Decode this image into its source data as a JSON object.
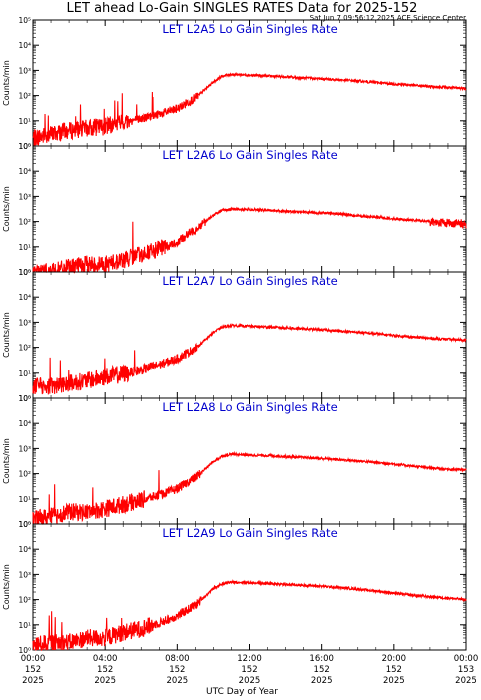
{
  "header": {
    "title": "LET ahead Lo-Gain SINGLES RATES Data for 2025-152",
    "timestamp": "Sat Jun  7 09:56:12 2025 ACE Science Center"
  },
  "xaxis": {
    "label": "UTC Day of Year",
    "ticks": [
      {
        "hour": 0,
        "time": "00:00",
        "doy": "152",
        "year": "2025"
      },
      {
        "hour": 4,
        "time": "04:00",
        "doy": "152",
        "year": "2025"
      },
      {
        "hour": 8,
        "time": "08:00",
        "doy": "152",
        "year": "2025"
      },
      {
        "hour": 12,
        "time": "12:00",
        "doy": "152",
        "year": "2025"
      },
      {
        "hour": 16,
        "time": "16:00",
        "doy": "152",
        "year": "2025"
      },
      {
        "hour": 20,
        "time": "20:00",
        "doy": "152",
        "year": "2025"
      },
      {
        "hour": 24,
        "time": "00:00",
        "doy": "153",
        "year": "2025"
      }
    ]
  },
  "yaxis": {
    "label": "Counts/min",
    "tick_labels": [
      "10⁰",
      "10¹",
      "10²",
      "10³",
      "10⁴",
      "10⁵"
    ]
  },
  "colors": {
    "series": "#ff0000",
    "panel_title": "#0000cc",
    "axes": "#000000"
  },
  "chart_data": [
    {
      "type": "line",
      "title": "LET L2A5 Lo Gain Singles Rate",
      "ylabel": "Counts/min",
      "xlabel": "UTC Day of Year",
      "xlim": [
        0,
        24
      ],
      "ylim": [
        1,
        100000
      ],
      "yscale": "log",
      "grid": false,
      "x": [
        0,
        1,
        2,
        3,
        4,
        5,
        6,
        7,
        8,
        9,
        10,
        10.5,
        11,
        12,
        13,
        14,
        15,
        16,
        17,
        18,
        19,
        20,
        21,
        22,
        23,
        24
      ],
      "y": [
        2,
        3,
        4,
        5,
        6,
        9,
        12,
        18,
        30,
        80,
        350,
        600,
        700,
        650,
        600,
        550,
        500,
        460,
        420,
        380,
        330,
        290,
        260,
        230,
        210,
        190
      ]
    },
    {
      "type": "line",
      "title": "LET L2A6 Lo Gain Singles Rate",
      "ylabel": "Counts/min",
      "xlabel": "UTC Day of Year",
      "xlim": [
        0,
        24
      ],
      "ylim": [
        1,
        100000
      ],
      "yscale": "log",
      "grid": false,
      "x": [
        0,
        1,
        2,
        3,
        4,
        5,
        6,
        7,
        8,
        9,
        10,
        10.5,
        11,
        12,
        13,
        14,
        15,
        16,
        17,
        18,
        19,
        20,
        21,
        22,
        23,
        24
      ],
      "y": [
        1,
        1,
        1.5,
        2,
        2,
        3,
        5,
        8,
        15,
        50,
        180,
        280,
        310,
        300,
        280,
        260,
        240,
        220,
        200,
        170,
        150,
        130,
        115,
        100,
        90,
        80
      ]
    },
    {
      "type": "line",
      "title": "LET L2A7 Lo Gain Singles Rate",
      "ylabel": "Counts/min",
      "xlabel": "UTC Day of Year",
      "xlim": [
        0,
        24
      ],
      "ylim": [
        1,
        100000
      ],
      "yscale": "log",
      "grid": false,
      "x": [
        0,
        1,
        2,
        3,
        4,
        5,
        6,
        7,
        8,
        9,
        10,
        10.5,
        11,
        12,
        13,
        14,
        15,
        16,
        17,
        18,
        19,
        20,
        21,
        22,
        23,
        24
      ],
      "y": [
        3,
        3,
        4,
        5,
        7,
        9,
        13,
        20,
        35,
        90,
        400,
        650,
        750,
        700,
        650,
        600,
        550,
        500,
        450,
        400,
        350,
        300,
        260,
        230,
        210,
        200
      ]
    },
    {
      "type": "line",
      "title": "LET L2A8 Lo Gain Singles Rate",
      "ylabel": "Counts/min",
      "xlabel": "UTC Day of Year",
      "xlim": [
        0,
        24
      ],
      "ylim": [
        1,
        100000
      ],
      "yscale": "log",
      "grid": false,
      "x": [
        0,
        1,
        2,
        3,
        4,
        5,
        6,
        7,
        8,
        9,
        10,
        10.5,
        11,
        12,
        13,
        14,
        15,
        16,
        17,
        18,
        19,
        20,
        21,
        22,
        23,
        24
      ],
      "y": [
        1.5,
        2,
        3,
        3,
        4,
        6,
        9,
        14,
        25,
        70,
        300,
        500,
        600,
        550,
        520,
        480,
        440,
        400,
        360,
        320,
        280,
        240,
        200,
        170,
        150,
        140
      ]
    },
    {
      "type": "line",
      "title": "LET L2A9 Lo Gain Singles Rate",
      "ylabel": "Counts/min",
      "xlabel": "UTC Day of Year",
      "xlim": [
        0,
        24
      ],
      "ylim": [
        1,
        100000
      ],
      "yscale": "log",
      "grid": false,
      "x": [
        0,
        1,
        2,
        3,
        4,
        5,
        6,
        7,
        8,
        9,
        10,
        10.5,
        11,
        12,
        13,
        14,
        15,
        16,
        17,
        18,
        19,
        20,
        21,
        22,
        23,
        24
      ],
      "y": [
        1.5,
        2,
        2,
        3,
        3,
        5,
        7,
        12,
        22,
        60,
        280,
        420,
        500,
        470,
        440,
        400,
        370,
        340,
        300,
        260,
        220,
        180,
        150,
        130,
        115,
        100
      ]
    }
  ]
}
